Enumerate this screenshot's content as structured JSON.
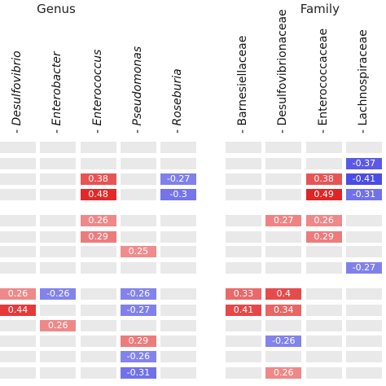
{
  "chart_data": {
    "type": "heatmap",
    "groups": [
      {
        "title": "Genus",
        "columns": [
          {
            "label": "Desulfovibrio",
            "italic": true
          },
          {
            "label": "Enterobacter",
            "italic": true
          },
          {
            "label": "Enterococcus",
            "italic": true
          },
          {
            "label": "Pseudomonas",
            "italic": true
          },
          {
            "label": "Roseburia",
            "italic": true
          }
        ],
        "values": [
          [
            null,
            null,
            null,
            null,
            null
          ],
          [
            null,
            null,
            null,
            null,
            null
          ],
          [
            null,
            null,
            0.38,
            null,
            -0.27
          ],
          [
            null,
            null,
            0.48,
            null,
            -0.3
          ],
          [
            null,
            null,
            0.26,
            null,
            null
          ],
          [
            null,
            null,
            0.29,
            null,
            null
          ],
          [
            null,
            null,
            null,
            0.25,
            null
          ],
          [
            null,
            null,
            null,
            null,
            null
          ],
          [
            0.26,
            -0.26,
            null,
            -0.26,
            null
          ],
          [
            0.44,
            null,
            null,
            -0.27,
            null
          ],
          [
            null,
            0.26,
            null,
            null,
            null
          ],
          [
            null,
            null,
            null,
            0.29,
            null
          ],
          [
            null,
            null,
            null,
            -0.26,
            null
          ],
          [
            null,
            null,
            null,
            -0.31,
            null
          ]
        ],
        "labels": [
          [
            null,
            null,
            null,
            null,
            null
          ],
          [
            null,
            null,
            null,
            null,
            null
          ],
          [
            null,
            null,
            "0.38",
            null,
            "-0.27"
          ],
          [
            null,
            null,
            "0.48",
            null,
            "-0.3"
          ],
          [
            null,
            null,
            "0.26",
            null,
            null
          ],
          [
            null,
            null,
            "0.29",
            null,
            null
          ],
          [
            null,
            null,
            null,
            "0.25",
            null
          ],
          [
            null,
            null,
            null,
            null,
            null
          ],
          [
            "0.26",
            "-0.26",
            null,
            "-0.26",
            null
          ],
          [
            "0.44",
            null,
            null,
            "-0.27",
            null
          ],
          [
            null,
            "0.26",
            null,
            null,
            null
          ],
          [
            null,
            null,
            null,
            "0.29",
            null
          ],
          [
            null,
            null,
            null,
            "-0.26",
            null
          ],
          [
            null,
            null,
            null,
            "-0.31",
            null
          ]
        ]
      },
      {
        "title": "Family",
        "columns": [
          {
            "label": "Barnesiellaceae",
            "italic": false
          },
          {
            "label": "Desulfovibrionaceae",
            "italic": false
          },
          {
            "label": "Enterococcaceae",
            "italic": false
          },
          {
            "label": "Lachnospiraceae",
            "italic": false
          }
        ],
        "values": [
          [
            null,
            null,
            null,
            null
          ],
          [
            null,
            null,
            null,
            -0.37
          ],
          [
            null,
            null,
            0.38,
            -0.41
          ],
          [
            null,
            null,
            0.49,
            -0.31
          ],
          [
            null,
            0.27,
            0.26,
            null
          ],
          [
            null,
            null,
            0.29,
            null
          ],
          [
            null,
            null,
            null,
            null
          ],
          [
            null,
            null,
            null,
            -0.27
          ],
          [
            0.33,
            0.4,
            null,
            null
          ],
          [
            0.41,
            0.34,
            null,
            null
          ],
          [
            null,
            null,
            null,
            null
          ],
          [
            null,
            -0.26,
            null,
            null
          ],
          [
            null,
            null,
            null,
            null
          ],
          [
            null,
            0.26,
            null,
            null
          ]
        ],
        "labels": [
          [
            null,
            null,
            null,
            null
          ],
          [
            null,
            null,
            null,
            "-0.37"
          ],
          [
            null,
            null,
            "0.38",
            "-0.41"
          ],
          [
            null,
            null,
            "0.49",
            "-0.31"
          ],
          [
            null,
            "0.27",
            "0.26",
            null
          ],
          [
            null,
            null,
            "0.29",
            null
          ],
          [
            null,
            null,
            null,
            null
          ],
          [
            null,
            null,
            null,
            "-0.27"
          ],
          [
            "0.33",
            "0.4",
            null,
            null
          ],
          [
            "0.41",
            "0.34",
            null,
            null
          ],
          [
            null,
            null,
            null,
            null
          ],
          [
            null,
            "-0.26",
            null,
            null
          ],
          [
            null,
            null,
            null,
            null
          ],
          [
            null,
            "0.26",
            null,
            null
          ]
        ]
      }
    ],
    "color_scale": {
      "positive": "#e02020",
      "negative": "#2a2ae0",
      "empty": "#e9e9e9",
      "vmax": 0.5
    }
  }
}
